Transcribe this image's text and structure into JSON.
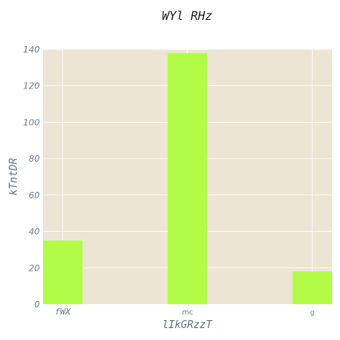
{
  "chart_data": {
    "type": "bar",
    "title": "WYl RHz",
    "xlabel": "lIkGRzzT",
    "ylabel": "kTntDR",
    "categories": [
      "fWX",
      "mc",
      "g"
    ],
    "values": [
      35,
      138,
      18
    ],
    "ylim": [
      0,
      140
    ],
    "yticks": [
      0,
      20,
      40,
      60,
      80,
      100,
      120,
      140
    ],
    "grid": true,
    "legend": "none",
    "colors": {
      "bar": "#b2fc48",
      "plot_background": "#ede5d3",
      "grid": "#ffffff",
      "text": "#6a7c8e",
      "title": "#222222"
    }
  }
}
